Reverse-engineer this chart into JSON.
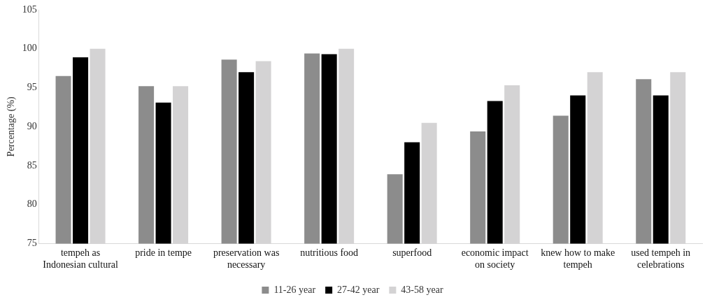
{
  "chart_data": {
    "type": "bar",
    "ylabel": "Percentage (%)",
    "categories": [
      "tempeh as Indonesian cultural",
      "pride in tempe",
      "preservation was necessary",
      "nutritious food",
      "superfood",
      "economic impact on society",
      "knew how to make tempeh",
      "used tempeh in celebrations"
    ],
    "series": [
      {
        "name": "11-26 year",
        "color": "#8c8c8c",
        "values": [
          96.5,
          95.2,
          98.6,
          99.4,
          83.9,
          89.4,
          91.4,
          96.1
        ]
      },
      {
        "name": "27-42 year",
        "color": "#000000",
        "values": [
          98.9,
          93.1,
          97.0,
          99.3,
          88.0,
          93.3,
          94.0,
          94.0
        ]
      },
      {
        "name": "43-58 year",
        "color": "#d4d3d4",
        "values": [
          100,
          95.2,
          98.4,
          100,
          90.5,
          95.3,
          97.0,
          97.0
        ]
      }
    ],
    "ylim": [
      75,
      105
    ],
    "yticks": [
      75,
      80,
      85,
      90,
      95,
      100,
      105
    ],
    "grid": false,
    "legend": "bottom"
  }
}
